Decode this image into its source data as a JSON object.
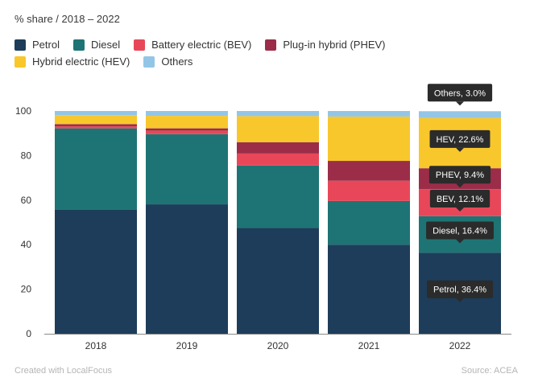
{
  "header": {
    "subtitle": "% share / 2018 – 2022"
  },
  "footer": {
    "credit": "Created with LocalFocus",
    "source": "Source: ACEA"
  },
  "chart_data": {
    "type": "bar",
    "stacked": true,
    "categories": [
      "2018",
      "2019",
      "2020",
      "2021",
      "2022"
    ],
    "series": [
      {
        "name": "Petrol",
        "color": "#1d3d5a",
        "values": [
          55.6,
          58.1,
          47.5,
          40.0,
          36.4
        ]
      },
      {
        "name": "Diesel",
        "color": "#1e7474",
        "values": [
          36.6,
          31.5,
          28.0,
          19.6,
          16.4
        ]
      },
      {
        "name": "Battery electric (BEV)",
        "color": "#e8475a",
        "values": [
          0.9,
          1.6,
          5.4,
          9.1,
          12.1
        ]
      },
      {
        "name": "Plug-in hybrid (PHEV)",
        "color": "#9b2d49",
        "values": [
          1.0,
          1.0,
          5.1,
          8.9,
          9.4
        ]
      },
      {
        "name": "Hybrid electric (HEV)",
        "color": "#f8c72c",
        "values": [
          4.0,
          5.6,
          11.7,
          19.9,
          22.6
        ]
      },
      {
        "name": "Others",
        "color": "#93c6e6",
        "values": [
          1.9,
          2.2,
          2.3,
          2.5,
          3.0
        ]
      }
    ],
    "ylim": [
      0,
      100
    ],
    "yticks": [
      0,
      20,
      40,
      60,
      80,
      100
    ],
    "grid": false,
    "legend_position": "top-left",
    "tooltips": [
      {
        "category": "2022",
        "series": "Others",
        "label": "Others, 3.0%"
      },
      {
        "category": "2022",
        "series": "Hybrid electric (HEV)",
        "label": "HEV, 22.6%"
      },
      {
        "category": "2022",
        "series": "Plug-in hybrid (PHEV)",
        "label": "PHEV, 9.4%"
      },
      {
        "category": "2022",
        "series": "Battery electric (BEV)",
        "label": "BEV, 12.1%"
      },
      {
        "category": "2022",
        "series": "Diesel",
        "label": "Diesel, 16.4%"
      },
      {
        "category": "2022",
        "series": "Petrol",
        "label": "Petrol, 36.4%"
      }
    ],
    "tooltip_color": "#2b2b2b"
  }
}
